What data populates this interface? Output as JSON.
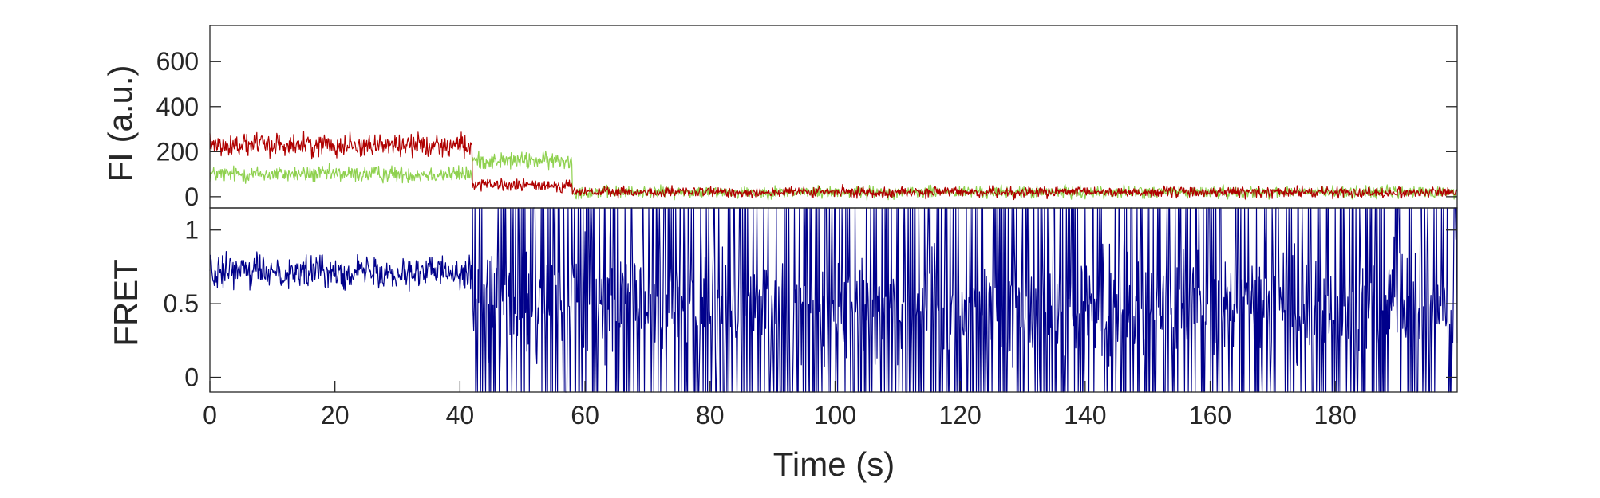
{
  "chart_data": [
    {
      "type": "line",
      "panel": "top",
      "title": "",
      "xlabel": "",
      "ylabel": "FI (a.u.)",
      "xlim": [
        0,
        199.5
      ],
      "ylim": [
        -50,
        760
      ],
      "yticks": [
        0,
        200,
        400,
        600
      ],
      "ytick_labels": [
        "0",
        "200",
        "400",
        "600"
      ],
      "grid": false,
      "series": [
        {
          "color": "#8fd14f",
          "sample_interval_s": 0.1,
          "segments": [
            {
              "t_start": 0,
              "t_end": 42,
              "mean": 100,
              "spread": 55
            },
            {
              "t_start": 42,
              "t_end": 58,
              "mean": 160,
              "spread": 55
            },
            {
              "t_start": 58,
              "t_end": 199.5,
              "mean": 20,
              "spread": 40
            }
          ]
        },
        {
          "color": "#b00000",
          "sample_interval_s": 0.1,
          "segments": [
            {
              "t_start": 0,
              "t_end": 42,
              "mean": 230,
              "spread": 75
            },
            {
              "t_start": 42,
              "t_end": 58,
              "mean": 50,
              "spread": 40
            },
            {
              "t_start": 58,
              "t_end": 199.5,
              "mean": 20,
              "spread": 35
            }
          ]
        }
      ]
    },
    {
      "type": "line",
      "panel": "bottom",
      "title": "",
      "xlabel": "Time (s)",
      "ylabel": "FRET",
      "xlim": [
        0,
        199.5
      ],
      "ylim": [
        -0.1,
        1.15
      ],
      "yticks": [
        0,
        0.5,
        1
      ],
      "ytick_labels": [
        "0",
        "0.5",
        "1"
      ],
      "xticks": [
        0,
        20,
        40,
        60,
        80,
        100,
        120,
        140,
        160,
        180
      ],
      "xtick_labels": [
        "0",
        "20",
        "40",
        "60",
        "80",
        "100",
        "120",
        "140",
        "160",
        "180"
      ],
      "grid": false,
      "series": [
        {
          "color": "#00008b",
          "sample_interval_s": 0.1,
          "segments": [
            {
              "t_start": 0,
              "t_end": 42,
              "mean": 0.72,
              "spread": 0.16
            },
            {
              "t_start": 42,
              "t_end": 199.5,
              "mean": 0.5,
              "spread": 0.55
            }
          ]
        }
      ]
    }
  ]
}
